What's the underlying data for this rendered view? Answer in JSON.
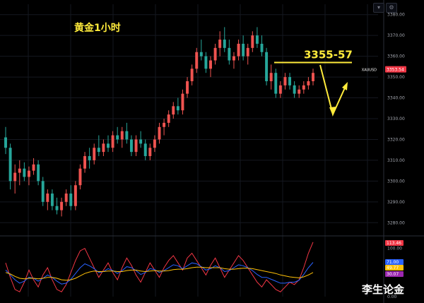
{
  "chart_title": "黄金1小时",
  "annotation": "3355-57",
  "watermark": "李生论金",
  "toolbar": {
    "icon1": "expand-icon",
    "icon2": "settings-icon"
  },
  "colors": {
    "background": "#000000",
    "up": "#ef5350",
    "down": "#26a69a",
    "annotation": "#ffeb3b",
    "grid": "#151820",
    "rsi_fast": "#f23645",
    "rsi_mid": "#2962ff",
    "rsi_slow": "#ffc107"
  },
  "chart_data": [
    {
      "type": "candlestick",
      "title": "黄金1小时",
      "symbol": "XAUUSD",
      "last_price": "3353.54",
      "y_ticks": [
        "3380.00",
        "3370.00",
        "3360.00",
        "3350.00",
        "3340.00",
        "3330.00",
        "3320.00",
        "3310.00",
        "3300.00",
        "3290.00",
        "3280.00"
      ],
      "ylim": [
        3275,
        3385
      ],
      "candles": [
        [
          3321,
          3326,
          3313,
          3316
        ],
        [
          3316,
          3318,
          3296,
          3300
        ],
        [
          3300,
          3308,
          3294,
          3304
        ],
        [
          3304,
          3310,
          3298,
          3306
        ],
        [
          3306,
          3309,
          3300,
          3302
        ],
        [
          3302,
          3307,
          3298,
          3305
        ],
        [
          3305,
          3311,
          3303,
          3308
        ],
        [
          3308,
          3310,
          3298,
          3300
        ],
        [
          3300,
          3302,
          3288,
          3290
        ],
        [
          3290,
          3296,
          3286,
          3294
        ],
        [
          3294,
          3296,
          3286,
          3288
        ],
        [
          3288,
          3292,
          3284,
          3286
        ],
        [
          3286,
          3292,
          3283,
          3290
        ],
        [
          3290,
          3296,
          3288,
          3294
        ],
        [
          3294,
          3298,
          3286,
          3288
        ],
        [
          3288,
          3300,
          3286,
          3298
        ],
        [
          3298,
          3308,
          3296,
          3306
        ],
        [
          3306,
          3314,
          3304,
          3312
        ],
        [
          3312,
          3316,
          3306,
          3310
        ],
        [
          3310,
          3318,
          3308,
          3316
        ],
        [
          3316,
          3322,
          3312,
          3314
        ],
        [
          3314,
          3320,
          3312,
          3318
        ],
        [
          3318,
          3322,
          3314,
          3316
        ],
        [
          3316,
          3324,
          3314,
          3322
        ],
        [
          3322,
          3326,
          3318,
          3320
        ],
        [
          3320,
          3326,
          3316,
          3324
        ],
        [
          3324,
          3328,
          3318,
          3320
        ],
        [
          3320,
          3322,
          3312,
          3314
        ],
        [
          3314,
          3322,
          3312,
          3320
        ],
        [
          3320,
          3324,
          3316,
          3318
        ],
        [
          3318,
          3320,
          3310,
          3312
        ],
        [
          3312,
          3318,
          3310,
          3316
        ],
        [
          3316,
          3322,
          3314,
          3320
        ],
        [
          3320,
          3328,
          3318,
          3326
        ],
        [
          3326,
          3330,
          3322,
          3328
        ],
        [
          3328,
          3334,
          3326,
          3332
        ],
        [
          3332,
          3338,
          3330,
          3336
        ],
        [
          3336,
          3340,
          3332,
          3334
        ],
        [
          3334,
          3344,
          3332,
          3342
        ],
        [
          3342,
          3350,
          3340,
          3348
        ],
        [
          3348,
          3356,
          3346,
          3354
        ],
        [
          3354,
          3364,
          3352,
          3362
        ],
        [
          3362,
          3368,
          3358,
          3360
        ],
        [
          3360,
          3362,
          3352,
          3354
        ],
        [
          3354,
          3360,
          3350,
          3358
        ],
        [
          3358,
          3366,
          3356,
          3364
        ],
        [
          3364,
          3372,
          3360,
          3368
        ],
        [
          3368,
          3374,
          3362,
          3364
        ],
        [
          3364,
          3368,
          3356,
          3358
        ],
        [
          3358,
          3362,
          3354,
          3360
        ],
        [
          3360,
          3368,
          3358,
          3366
        ],
        [
          3366,
          3370,
          3358,
          3360
        ],
        [
          3360,
          3366,
          3356,
          3364
        ],
        [
          3364,
          3372,
          3362,
          3370
        ],
        [
          3370,
          3374,
          3364,
          3366
        ],
        [
          3366,
          3370,
          3360,
          3362
        ],
        [
          3362,
          3364,
          3346,
          3348
        ],
        [
          3348,
          3356,
          3344,
          3352
        ],
        [
          3352,
          3354,
          3340,
          3342
        ],
        [
          3342,
          3348,
          3340,
          3346
        ],
        [
          3346,
          3352,
          3344,
          3350
        ],
        [
          3350,
          3352,
          3344,
          3346
        ],
        [
          3346,
          3348,
          3340,
          3342
        ],
        [
          3342,
          3346,
          3340,
          3344
        ],
        [
          3344,
          3348,
          3342,
          3346
        ],
        [
          3346,
          3350,
          3344,
          3348
        ],
        [
          3348,
          3354,
          3346,
          3352
        ]
      ]
    },
    {
      "type": "line",
      "ylim": [
        0,
        120
      ],
      "y_ticks": [
        "100.00",
        "0.00"
      ],
      "value_tags": [
        "113.46",
        "71.00",
        "49.77",
        "30.07"
      ],
      "series": [
        {
          "values": [
            70,
            40,
            15,
            10,
            30,
            55,
            35,
            20,
            45,
            60,
            35,
            15,
            10,
            25,
            50,
            75,
            95,
            100,
            80,
            60,
            40,
            55,
            70,
            50,
            35,
            60,
            80,
            65,
            45,
            30,
            50,
            70,
            55,
            40,
            60,
            75,
            85,
            70,
            55,
            80,
            90,
            75,
            60,
            45,
            65,
            80,
            60,
            40,
            55,
            70,
            85,
            75,
            60,
            45,
            30,
            20,
            35,
            25,
            15,
            10,
            20,
            30,
            25,
            35,
            60,
            90,
            113
          ]
        },
        {
          "values": [
            55,
            45,
            35,
            28,
            32,
            40,
            38,
            32,
            38,
            45,
            40,
            32,
            26,
            28,
            36,
            48,
            60,
            68,
            64,
            58,
            50,
            52,
            58,
            54,
            48,
            54,
            62,
            60,
            54,
            46,
            50,
            58,
            56,
            50,
            54,
            60,
            66,
            64,
            58,
            64,
            70,
            68,
            62,
            55,
            58,
            64,
            60,
            52,
            54,
            60,
            66,
            64,
            60,
            54,
            46,
            40,
            40,
            36,
            32,
            28,
            28,
            30,
            30,
            34,
            46,
            60,
            71
          ]
        },
        {
          "values": [
            50,
            47,
            42,
            38,
            37,
            38,
            38,
            37,
            38,
            40,
            40,
            38,
            35,
            34,
            35,
            38,
            43,
            48,
            51,
            53,
            52,
            52,
            53,
            53,
            52,
            52,
            54,
            55,
            55,
            53,
            52,
            53,
            54,
            53,
            53,
            54,
            56,
            57,
            57,
            58,
            60,
            61,
            61,
            60,
            60,
            60,
            60,
            58,
            57,
            57,
            58,
            59,
            59,
            58,
            56,
            54,
            52,
            50,
            48,
            45,
            43,
            41,
            40,
            39,
            41,
            45,
            50
          ]
        }
      ]
    }
  ]
}
